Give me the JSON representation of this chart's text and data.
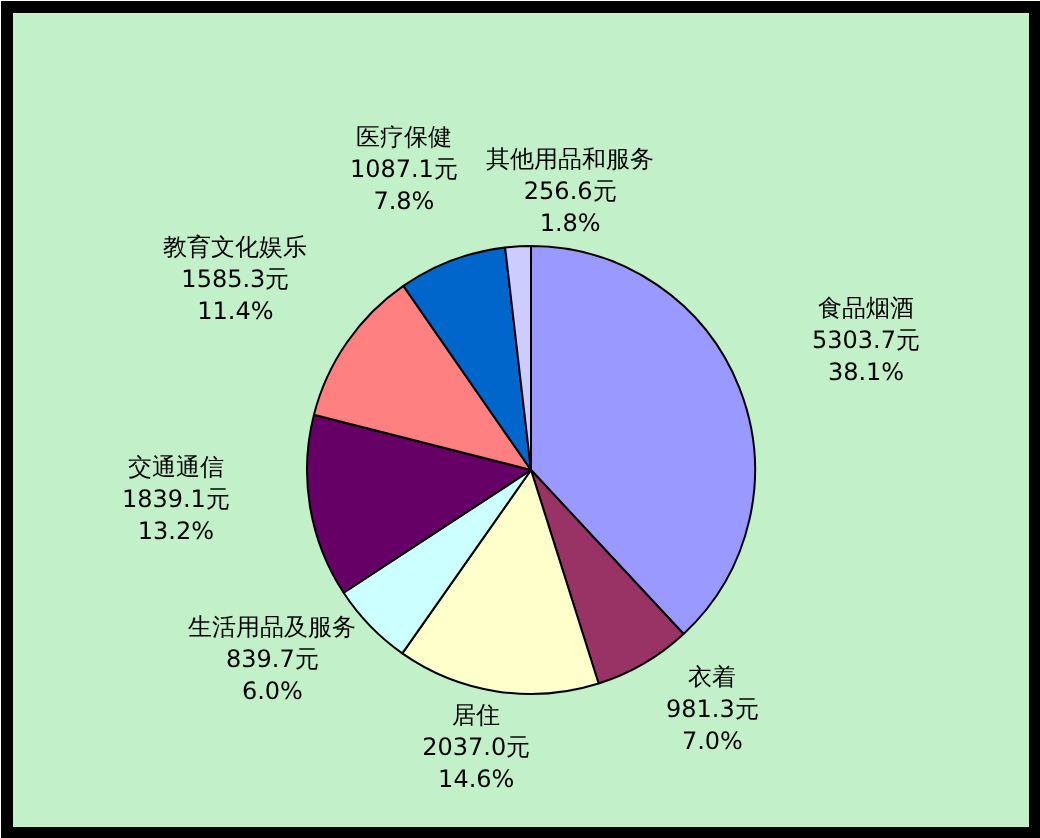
{
  "chart_data": {
    "type": "pie",
    "categories": [
      "食品烟酒",
      "衣着",
      "居住",
      "生活用品及服务",
      "交通通信",
      "教育文化娱乐",
      "医疗保健",
      "其他用品和服务"
    ],
    "values": [
      5303.7,
      981.3,
      2037.0,
      839.7,
      1839.1,
      1585.3,
      1087.1,
      256.6
    ],
    "value_labels": [
      "5303.7元\n38.1%",
      "981.3元\n7.0%",
      "2037.0元\n14.6%",
      "839.7元\n6.0%",
      "1839.1元\n13.2%",
      "1585.3元\n11.4%",
      "1087.1元\n7.8%",
      "256.6元\n1.8%"
    ],
    "colors": [
      "#9999ff",
      "#993366",
      "#ffffcc",
      "#ccffff",
      "#660066",
      "#ff8080",
      "#0066cc",
      "#ccccff"
    ]
  }
}
